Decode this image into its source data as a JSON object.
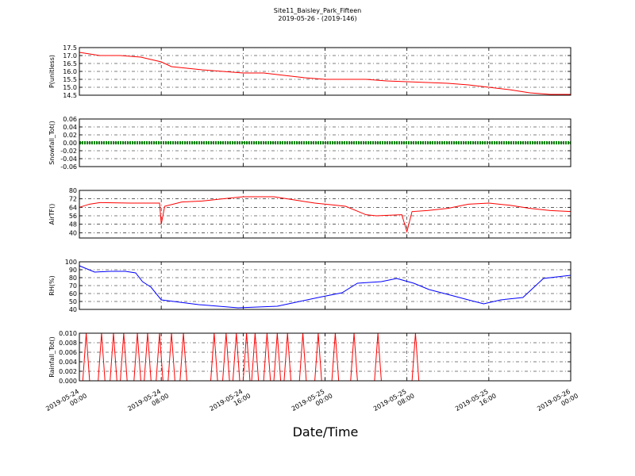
{
  "title": "Site11_Baisley_Park_Fifteen",
  "subtitle": "2019-05-26 - (2019-146)",
  "xlabel": "Date/Time",
  "xlim": [
    "2019-05-24 00:00",
    "2019-05-26 00:00"
  ],
  "xticks": [
    "2019-05-24 00:00",
    "2019-05-24 08:00",
    "2019-05-24 16:00",
    "2019-05-25 00:00",
    "2019-05-25 08:00",
    "2019-05-25 16:00",
    "2019-05-26 00:00"
  ],
  "grid": true,
  "chart_data": [
    {
      "type": "line",
      "ylabel": "P(unitless)",
      "color": "#ff0000",
      "ylim": [
        14.5,
        17.5
      ],
      "yticks": [
        14.5,
        {
          "value": 15,
          "label": "15.0"
        },
        15.5,
        {
          "value": 16,
          "label": "16.0"
        },
        16.5,
        {
          "value": 17,
          "label": "17.0"
        },
        17.5
      ],
      "x": [
        "2019-05-24 00:00",
        "2019-05-24 02:00",
        "2019-05-24 04:00",
        "2019-05-24 06:00",
        "2019-05-24 08:00",
        "2019-05-24 09:00",
        "2019-05-24 12:00",
        "2019-05-24 14:00",
        "2019-05-24 16:00",
        "2019-05-24 18:00",
        "2019-05-24 20:00",
        "2019-05-24 22:00",
        "2019-05-25 00:00",
        "2019-05-25 02:00",
        "2019-05-25 04:00",
        "2019-05-25 06:00",
        "2019-05-25 08:00",
        "2019-05-25 10:00",
        "2019-05-25 12:00",
        "2019-05-25 14:00",
        "2019-05-25 16:00",
        "2019-05-25 18:00",
        "2019-05-25 20:00",
        "2019-05-25 22:00",
        "2019-05-26 00:00"
      ],
      "values": [
        17.2,
        17.0,
        17.0,
        16.9,
        16.6,
        16.3,
        16.1,
        16.0,
        15.9,
        15.9,
        15.75,
        15.6,
        15.5,
        15.5,
        15.5,
        15.4,
        15.35,
        15.3,
        15.25,
        15.15,
        15.0,
        14.85,
        14.65,
        14.55,
        14.55
      ]
    },
    {
      "type": "line",
      "ylabel": "Snowfall_Tot()",
      "color": "#008000",
      "ylim": [
        -0.06,
        0.06
      ],
      "yticks": [
        -0.06,
        -0.04,
        -0.02,
        {
          "value": 0,
          "label": "0.00"
        },
        0.02,
        0.04,
        0.06
      ],
      "x": [
        "2019-05-24 00:00",
        "2019-05-26 00:00"
      ],
      "values": [
        0,
        0
      ]
    },
    {
      "type": "line",
      "ylabel": "AirTF()",
      "color": "#ff0000",
      "ylim": [
        35,
        80
      ],
      "yticks": [
        40,
        48,
        56,
        64,
        72,
        80
      ],
      "x": [
        "2019-05-24 00:00",
        "2019-05-24 01:00",
        "2019-05-24 02:00",
        "2019-05-24 05:00",
        "2019-05-24 07:50",
        "2019-05-24 08:00",
        "2019-05-24 08:20",
        "2019-05-24 10:00",
        "2019-05-24 12:00",
        "2019-05-24 14:00",
        "2019-05-24 16:00",
        "2019-05-24 19:00",
        "2019-05-24 21:00",
        "2019-05-24 23:00",
        "2019-05-25 01:00",
        "2019-05-25 02:00",
        "2019-05-25 03:00",
        "2019-05-25 04:00",
        "2019-05-25 05:00",
        "2019-05-25 07:30",
        "2019-05-25 08:00",
        "2019-05-25 08:30",
        "2019-05-25 10:00",
        "2019-05-25 12:00",
        "2019-05-25 14:00",
        "2019-05-25 16:00",
        "2019-05-25 18:00",
        "2019-05-25 20:00",
        "2019-05-25 22:00",
        "2019-05-26 00:00"
      ],
      "values": [
        64,
        67,
        68.5,
        68,
        68,
        48,
        65,
        69,
        70,
        72,
        74,
        74,
        71,
        68,
        66,
        65,
        61,
        57,
        56,
        57,
        41,
        60,
        61,
        63,
        67,
        68,
        66,
        63,
        61,
        60
      ]
    },
    {
      "type": "line",
      "ylabel": "RH(%)",
      "color": "#0000ff",
      "ylim": [
        40,
        100
      ],
      "yticks": [
        40,
        50,
        60,
        70,
        80,
        90,
        100
      ],
      "x": [
        "2019-05-24 00:00",
        "2019-05-24 01:30",
        "2019-05-24 03:00",
        "2019-05-24 04:30",
        "2019-05-24 05:30",
        "2019-05-24 06:10",
        "2019-05-24 07:00",
        "2019-05-24 08:00",
        "2019-05-24 11:40",
        "2019-05-24 15:30",
        "2019-05-24 19:20",
        "2019-05-24 23:20",
        "2019-05-25 01:40",
        "2019-05-25 03:10",
        "2019-05-25 05:30",
        "2019-05-25 07:00",
        "2019-05-25 08:40",
        "2019-05-25 10:10",
        "2019-05-25 11:40",
        "2019-05-25 14:00",
        "2019-05-25 15:30",
        "2019-05-25 17:10",
        "2019-05-25 19:20",
        "2019-05-25 21:20",
        "2019-05-26 00:00"
      ],
      "values": [
        95,
        87,
        88,
        88,
        86,
        75,
        68,
        52,
        46,
        42,
        44,
        55,
        61,
        73,
        75,
        79,
        73,
        65,
        60,
        52,
        47,
        52,
        55,
        79,
        83
      ]
    },
    {
      "type": "line",
      "ylabel": "Rainfall_Tot()",
      "color": "#ff0000",
      "ylim": [
        0,
        0.01
      ],
      "yticks": [
        {
          "value": 0,
          "label": "0.000"
        },
        {
          "value": 0.002,
          "label": "0.002"
        },
        {
          "value": 0.004,
          "label": "0.004"
        },
        {
          "value": 0.006,
          "label": "0.006"
        },
        {
          "value": 0.008,
          "label": "0.008"
        },
        {
          "value": 0.01,
          "label": "0.010"
        }
      ],
      "x": [
        "2019-05-24 00:00",
        "2019-05-24 00:20",
        "2019-05-24 00:40",
        "2019-05-24 01:00",
        "2019-05-24 01:50",
        "2019-05-24 02:10",
        "2019-05-24 02:30",
        "2019-05-24 03:00",
        "2019-05-24 03:20",
        "2019-05-24 03:40",
        "2019-05-24 04:00",
        "2019-05-24 04:20",
        "2019-05-24 04:40",
        "2019-05-24 05:20",
        "2019-05-24 05:40",
        "2019-05-24 06:00",
        "2019-05-24 06:20",
        "2019-05-24 06:40",
        "2019-05-24 07:00",
        "2019-05-24 07:30",
        "2019-05-24 07:50",
        "2019-05-24 08:10",
        "2019-05-24 08:40",
        "2019-05-24 09:00",
        "2019-05-24 09:20",
        "2019-05-24 09:50",
        "2019-05-24 10:10",
        "2019-05-24 10:30",
        "2019-05-24 12:50",
        "2019-05-24 13:10",
        "2019-05-24 13:30",
        "2019-05-24 14:00",
        "2019-05-24 14:20",
        "2019-05-24 14:40",
        "2019-05-24 15:00",
        "2019-05-24 15:20",
        "2019-05-24 15:40",
        "2019-05-24 16:00",
        "2019-05-24 16:20",
        "2019-05-24 16:40",
        "2019-05-24 16:50",
        "2019-05-24 17:10",
        "2019-05-24 17:30",
        "2019-05-24 18:00",
        "2019-05-24 18:20",
        "2019-05-24 18:40",
        "2019-05-24 19:00",
        "2019-05-24 19:20",
        "2019-05-24 19:40",
        "2019-05-24 20:00",
        "2019-05-24 20:20",
        "2019-05-24 20:40",
        "2019-05-24 21:30",
        "2019-05-24 21:50",
        "2019-05-24 22:10",
        "2019-05-24 23:00",
        "2019-05-24 23:20",
        "2019-05-24 23:40",
        "2019-05-25 00:40",
        "2019-05-25 01:00",
        "2019-05-25 01:20",
        "2019-05-25 02:30",
        "2019-05-25 02:50",
        "2019-05-25 03:10",
        "2019-05-25 04:50",
        "2019-05-25 05:10",
        "2019-05-25 05:30",
        "2019-05-25 08:30",
        "2019-05-25 08:50",
        "2019-05-25 09:10",
        "2019-05-26 00:00"
      ],
      "values": [
        0,
        0,
        0.01,
        0,
        0,
        0.01,
        0,
        0,
        0.01,
        0,
        0,
        0.01,
        0,
        0,
        0.01,
        0,
        0,
        0.01,
        0,
        0,
        0.01,
        0,
        0,
        0.01,
        0,
        0,
        0.01,
        0,
        0,
        0.01,
        0,
        0,
        0.01,
        0,
        0,
        0.01,
        0,
        0,
        0.01,
        0,
        0,
        0.01,
        0,
        0,
        0.01,
        0,
        0,
        0.01,
        0,
        0,
        0.01,
        0,
        0,
        0.01,
        0,
        0,
        0.01,
        0,
        0,
        0.01,
        0,
        0,
        0.01,
        0,
        0,
        0.01,
        0,
        0,
        0.01,
        0,
        0
      ]
    }
  ]
}
